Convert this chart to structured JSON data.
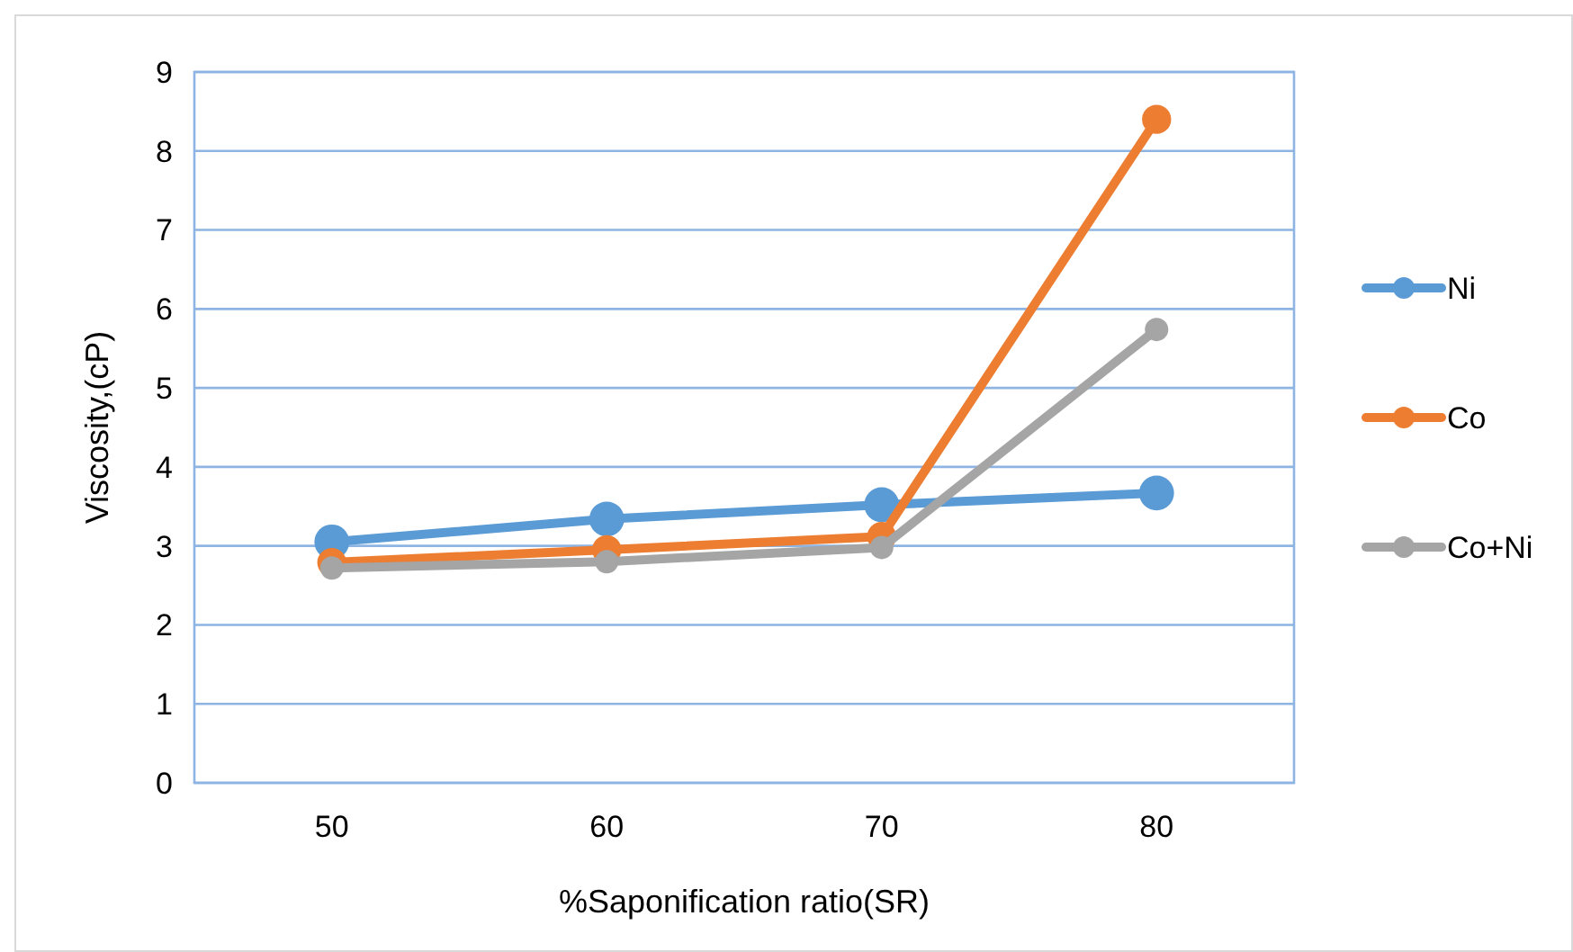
{
  "chart_data": {
    "type": "line",
    "xlabel": "%Saponification ratio(SR)",
    "ylabel": "Viscosity,(cP)",
    "categories": [
      "50",
      "60",
      "70",
      "80"
    ],
    "ylim": [
      0,
      9
    ],
    "yticks": [
      0,
      1,
      2,
      3,
      4,
      5,
      6,
      7,
      8,
      9
    ],
    "grid": "y",
    "legend": "right",
    "marker": "circle",
    "line_style": "solid",
    "series": [
      {
        "name": "Ni",
        "color": "#5b9bd5",
        "values": [
          3.05,
          3.34,
          3.52,
          3.67
        ]
      },
      {
        "name": "Co",
        "color": "#ed7d31",
        "values": [
          2.79,
          2.95,
          3.12,
          8.4
        ]
      },
      {
        "name": "Co+Ni",
        "color": "#a5a5a5",
        "values": [
          2.72,
          2.8,
          2.98,
          5.74
        ]
      }
    ]
  }
}
